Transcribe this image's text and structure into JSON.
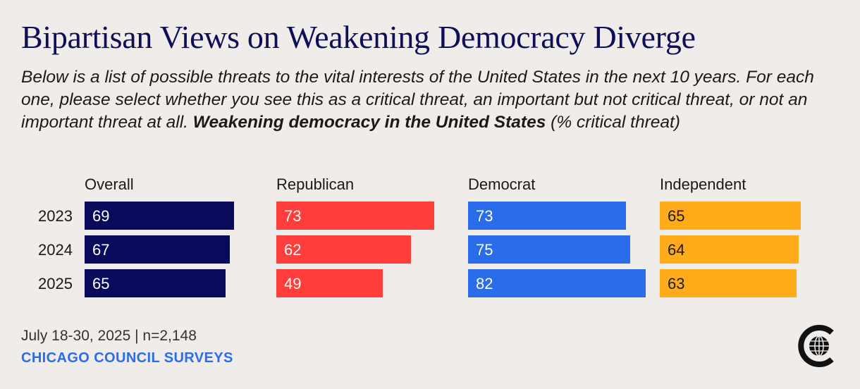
{
  "title": "Bipartisan Views on Weakening Democracy Diverge",
  "subtitle": {
    "question": "Below is a list of possible threats to the vital interests of the United States in the next 10 years. For each one, please select whether you see this as a critical threat, an important but not critical threat, or not an important threat at all.",
    "item": "Weakening democracy in the United States",
    "unit": "(% critical threat)"
  },
  "chart_data": {
    "type": "bar",
    "orientation": "horizontal",
    "layout": "small-multiples",
    "title": "Weakening democracy in the United States (% critical threat)",
    "categories": [
      "2023",
      "2024",
      "2025"
    ],
    "series": [
      {
        "name": "Overall",
        "color": "#0a0a5c",
        "values": [
          69,
          67,
          65
        ]
      },
      {
        "name": "Republican",
        "color": "#ff3d3a",
        "values": [
          73,
          62,
          49
        ]
      },
      {
        "name": "Democrat",
        "color": "#2a6cea",
        "values": [
          73,
          75,
          82
        ]
      },
      {
        "name": "Independent",
        "color": "#ffab1a",
        "values": [
          65,
          64,
          63
        ]
      }
    ],
    "xlim": [
      0,
      82
    ]
  },
  "footer": {
    "date": "July 18-30, 2025 | n=2,148",
    "source": "CHICAGO COUNCIL SURVEYS"
  },
  "logo": {
    "icon": "chicago-council-globe-icon"
  }
}
